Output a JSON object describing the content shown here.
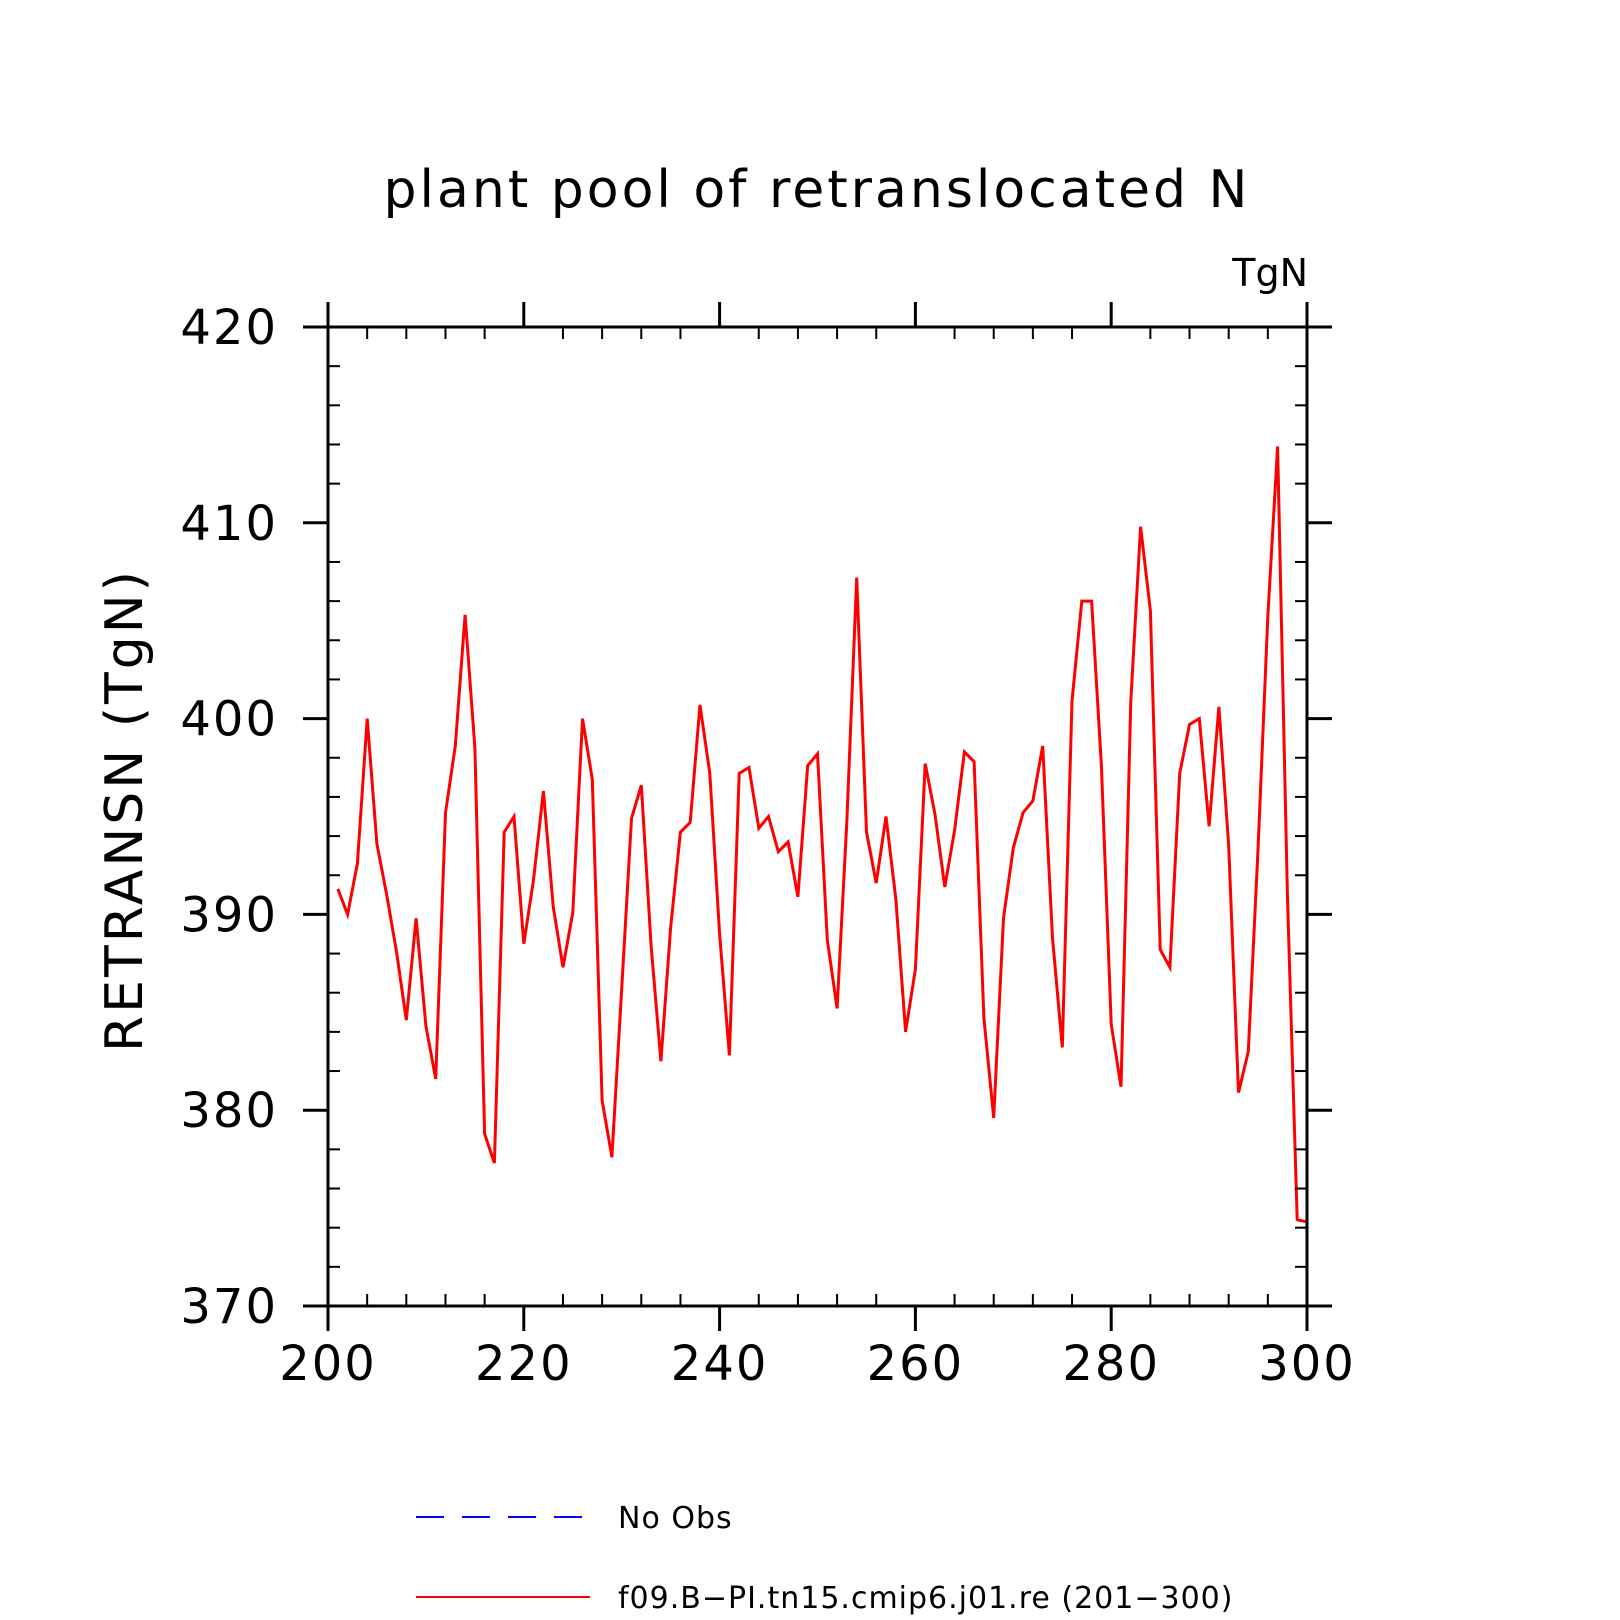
{
  "chart_data": {
    "type": "line",
    "title": "plant pool of retranslocated N",
    "units_label": "TgN",
    "ylabel": "RETRANSN   (TgN)",
    "xlabel": "",
    "xlim": [
      200,
      300
    ],
    "ylim": [
      370,
      420
    ],
    "x_ticks": [
      200,
      220,
      240,
      260,
      280,
      300
    ],
    "y_ticks": [
      370,
      380,
      390,
      400,
      410,
      420
    ],
    "x_minor_step": 4,
    "y_minor_step": 2,
    "grid": false,
    "legend_position": "bottom",
    "legend": [
      {
        "label": "No Obs",
        "color": "#0000ff",
        "style": "dashed"
      },
      {
        "label": "f09.B−PI.tn15.cmip6.j01.re (201−300)",
        "color": "#ff0000",
        "style": "solid"
      }
    ],
    "series": [
      {
        "name": "f09.B−PI.tn15.cmip6.j01.re (201−300)",
        "color": "#ff0000",
        "x": [
          201,
          202,
          203,
          204,
          205,
          206,
          207,
          208,
          209,
          210,
          211,
          212,
          213,
          214,
          215,
          216,
          217,
          218,
          219,
          220,
          221,
          222,
          223,
          224,
          225,
          226,
          227,
          228,
          229,
          230,
          231,
          232,
          233,
          234,
          235,
          236,
          237,
          238,
          239,
          240,
          241,
          242,
          243,
          244,
          245,
          246,
          247,
          248,
          249,
          250,
          251,
          252,
          253,
          254,
          255,
          256,
          257,
          258,
          259,
          260,
          261,
          262,
          263,
          264,
          265,
          266,
          267,
          268,
          269,
          270,
          271,
          272,
          273,
          274,
          275,
          276,
          277,
          278,
          279,
          280,
          281,
          282,
          283,
          284,
          285,
          286,
          287,
          288,
          289,
          290,
          291,
          292,
          293,
          294,
          295,
          296,
          297,
          298,
          299,
          300
        ],
        "values": [
          391.3,
          390.0,
          392.6,
          400.0,
          393.6,
          391.0,
          388.1,
          384.6,
          389.8,
          384.3,
          381.6,
          395.2,
          398.6,
          405.3,
          398.5,
          378.8,
          377.3,
          394.2,
          395.0,
          388.5,
          391.8,
          396.3,
          390.4,
          387.3,
          390.1,
          400.0,
          396.9,
          380.5,
          377.6,
          386.2,
          394.9,
          396.6,
          388.4,
          382.5,
          389.3,
          394.2,
          394.7,
          400.7,
          397.2,
          389.0,
          382.8,
          397.2,
          397.5,
          394.4,
          395.0,
          393.2,
          393.7,
          390.9,
          397.6,
          398.2,
          388.7,
          385.2,
          394.8,
          407.2,
          394.2,
          391.6,
          395.0,
          390.8,
          384.0,
          387.2,
          397.7,
          395.1,
          391.4,
          394.3,
          398.3,
          397.8,
          384.7,
          379.6,
          389.8,
          393.4,
          395.2,
          395.8,
          398.6,
          388.8,
          383.2,
          400.9,
          406.0,
          406.0,
          397.6,
          384.4,
          381.2,
          400.9,
          409.8,
          405.5,
          388.2,
          387.3,
          397.2,
          399.7,
          400.0,
          394.5,
          400.6,
          393.5,
          380.9,
          383.0,
          393.3,
          405.2,
          413.9,
          391.0,
          374.4,
          374.3
        ]
      }
    ]
  }
}
